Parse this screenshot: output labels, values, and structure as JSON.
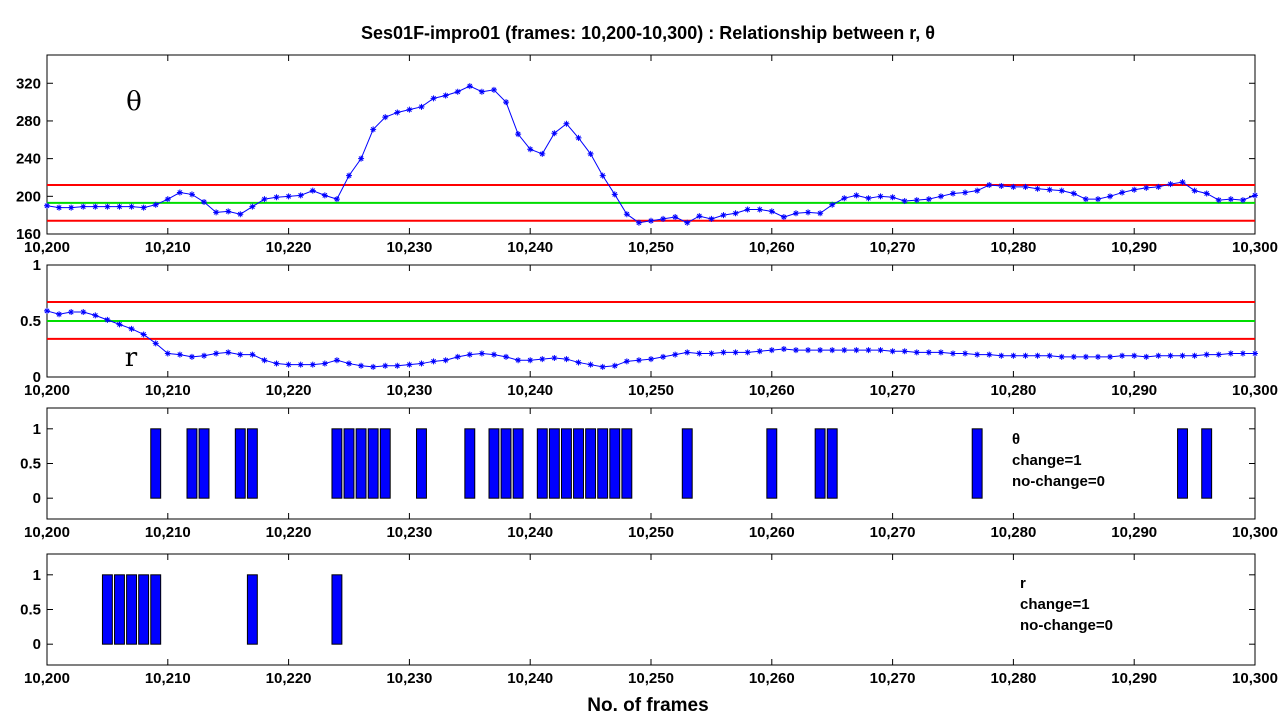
{
  "figure": {
    "title": "Ses01F-impro01 (frames: 10,200-10,300) : Relationship between r, θ",
    "xlabel": "No. of frames"
  },
  "chart_data": [
    {
      "type": "line",
      "panel": "theta",
      "label": "θ",
      "xlim": [
        10200,
        10300
      ],
      "ylim": [
        160,
        350
      ],
      "x_ticks": [
        10200,
        10210,
        10220,
        10230,
        10240,
        10250,
        10260,
        10270,
        10280,
        10290,
        10300
      ],
      "x_tick_labels": [
        "10,200",
        "10,210",
        "10,220",
        "10,230",
        "10,240",
        "10,250",
        "10,260",
        "10,270",
        "10,280",
        "10,290",
        "10,300"
      ],
      "y_ticks": [
        160,
        200,
        240,
        280,
        320
      ],
      "y_tick_labels": [
        "160",
        "200",
        "240",
        "280",
        "320"
      ],
      "line_color": "#0000ff",
      "threshold_color": "#ff0000",
      "mean_color": "#00dd00",
      "mean_line": 193,
      "threshold_lines": [
        174,
        212
      ],
      "x_start": 10200,
      "values": [
        190,
        188,
        188,
        189,
        189,
        189,
        189,
        189,
        188,
        191,
        197,
        204,
        202,
        194,
        183,
        184,
        181,
        189,
        197,
        199,
        200,
        201,
        206,
        201,
        197,
        222,
        240,
        271,
        284,
        289,
        292,
        295,
        304,
        307,
        311,
        317,
        311,
        313,
        300,
        266,
        250,
        245,
        267,
        277,
        262,
        245,
        222,
        202,
        181,
        172,
        174,
        176,
        178,
        172,
        179,
        176,
        180,
        182,
        186,
        186,
        184,
        178,
        182,
        183,
        182,
        191,
        198,
        201,
        198,
        200,
        199,
        195,
        196,
        197,
        200,
        203,
        204,
        206,
        212,
        211,
        210,
        210,
        208,
        207,
        206,
        203,
        197,
        197,
        200,
        204,
        207,
        209,
        210,
        213,
        215,
        206,
        203,
        196,
        197,
        196,
        201
      ]
    },
    {
      "type": "line",
      "panel": "r",
      "label": "r",
      "xlim": [
        10200,
        10300
      ],
      "ylim": [
        0,
        1
      ],
      "x_ticks": [
        10200,
        10210,
        10220,
        10230,
        10240,
        10250,
        10260,
        10270,
        10280,
        10290,
        10300
      ],
      "x_tick_labels": [
        "10,200",
        "10,210",
        "10,220",
        "10,230",
        "10,240",
        "10,250",
        "10,260",
        "10,270",
        "10,280",
        "10,290",
        "10,300"
      ],
      "y_ticks": [
        0,
        0.5,
        1
      ],
      "y_tick_labels": [
        "0",
        "0.5",
        "1"
      ],
      "line_color": "#0000ff",
      "threshold_color": "#ff0000",
      "mean_color": "#00dd00",
      "mean_line": 0.5,
      "threshold_lines": [
        0.34,
        0.67
      ],
      "x_start": 10200,
      "values": [
        0.59,
        0.56,
        0.58,
        0.58,
        0.55,
        0.51,
        0.47,
        0.43,
        0.38,
        0.3,
        0.21,
        0.2,
        0.18,
        0.19,
        0.21,
        0.22,
        0.2,
        0.2,
        0.15,
        0.12,
        0.11,
        0.11,
        0.11,
        0.12,
        0.15,
        0.12,
        0.1,
        0.09,
        0.1,
        0.1,
        0.11,
        0.12,
        0.14,
        0.15,
        0.18,
        0.2,
        0.21,
        0.2,
        0.18,
        0.15,
        0.15,
        0.16,
        0.17,
        0.16,
        0.13,
        0.11,
        0.09,
        0.1,
        0.14,
        0.15,
        0.16,
        0.18,
        0.2,
        0.22,
        0.21,
        0.21,
        0.22,
        0.22,
        0.22,
        0.23,
        0.24,
        0.25,
        0.24,
        0.24,
        0.24,
        0.24,
        0.24,
        0.24,
        0.24,
        0.24,
        0.23,
        0.23,
        0.22,
        0.22,
        0.22,
        0.21,
        0.21,
        0.2,
        0.2,
        0.19,
        0.19,
        0.19,
        0.19,
        0.19,
        0.18,
        0.18,
        0.18,
        0.18,
        0.18,
        0.19,
        0.19,
        0.18,
        0.19,
        0.19,
        0.19,
        0.19,
        0.2,
        0.2,
        0.21,
        0.21,
        0.21
      ]
    },
    {
      "type": "bar",
      "panel": "theta_change",
      "xlim": [
        10200,
        10300
      ],
      "ylim": [
        -0.3,
        1.3
      ],
      "x_ticks": [
        10200,
        10210,
        10220,
        10230,
        10240,
        10250,
        10260,
        10270,
        10280,
        10290,
        10300
      ],
      "x_tick_labels": [
        "10,200",
        "10,210",
        "10,220",
        "10,230",
        "10,240",
        "10,250",
        "10,260",
        "10,270",
        "10,280",
        "10,290",
        "10,300"
      ],
      "y_ticks": [
        0,
        0.5,
        1
      ],
      "y_tick_labels": [
        "0",
        "0.5",
        "1"
      ],
      "bar_color": "#0000ff",
      "legend": [
        "θ",
        "change=1",
        "no-change=0"
      ],
      "change_frames": [
        10209,
        10212,
        10213,
        10216,
        10217,
        10224,
        10225,
        10226,
        10227,
        10228,
        10231,
        10235,
        10237,
        10238,
        10239,
        10241,
        10242,
        10243,
        10244,
        10245,
        10246,
        10247,
        10248,
        10253,
        10260,
        10264,
        10265,
        10277,
        10294,
        10296
      ]
    },
    {
      "type": "bar",
      "panel": "r_change",
      "xlim": [
        10200,
        10300
      ],
      "ylim": [
        -0.3,
        1.3
      ],
      "x_ticks": [
        10200,
        10210,
        10220,
        10230,
        10240,
        10250,
        10260,
        10270,
        10280,
        10290,
        10300
      ],
      "x_tick_labels": [
        "10,200",
        "10,210",
        "10,220",
        "10,230",
        "10,240",
        "10,250",
        "10,260",
        "10,270",
        "10,280",
        "10,290",
        "10,300"
      ],
      "y_ticks": [
        0,
        0.5,
        1
      ],
      "y_tick_labels": [
        "0",
        "0.5",
        "1"
      ],
      "bar_color": "#0000ff",
      "legend": [
        "r",
        "change=1",
        "no-change=0"
      ],
      "change_frames": [
        10205,
        10206,
        10207,
        10208,
        10209,
        10217,
        10224
      ]
    }
  ]
}
